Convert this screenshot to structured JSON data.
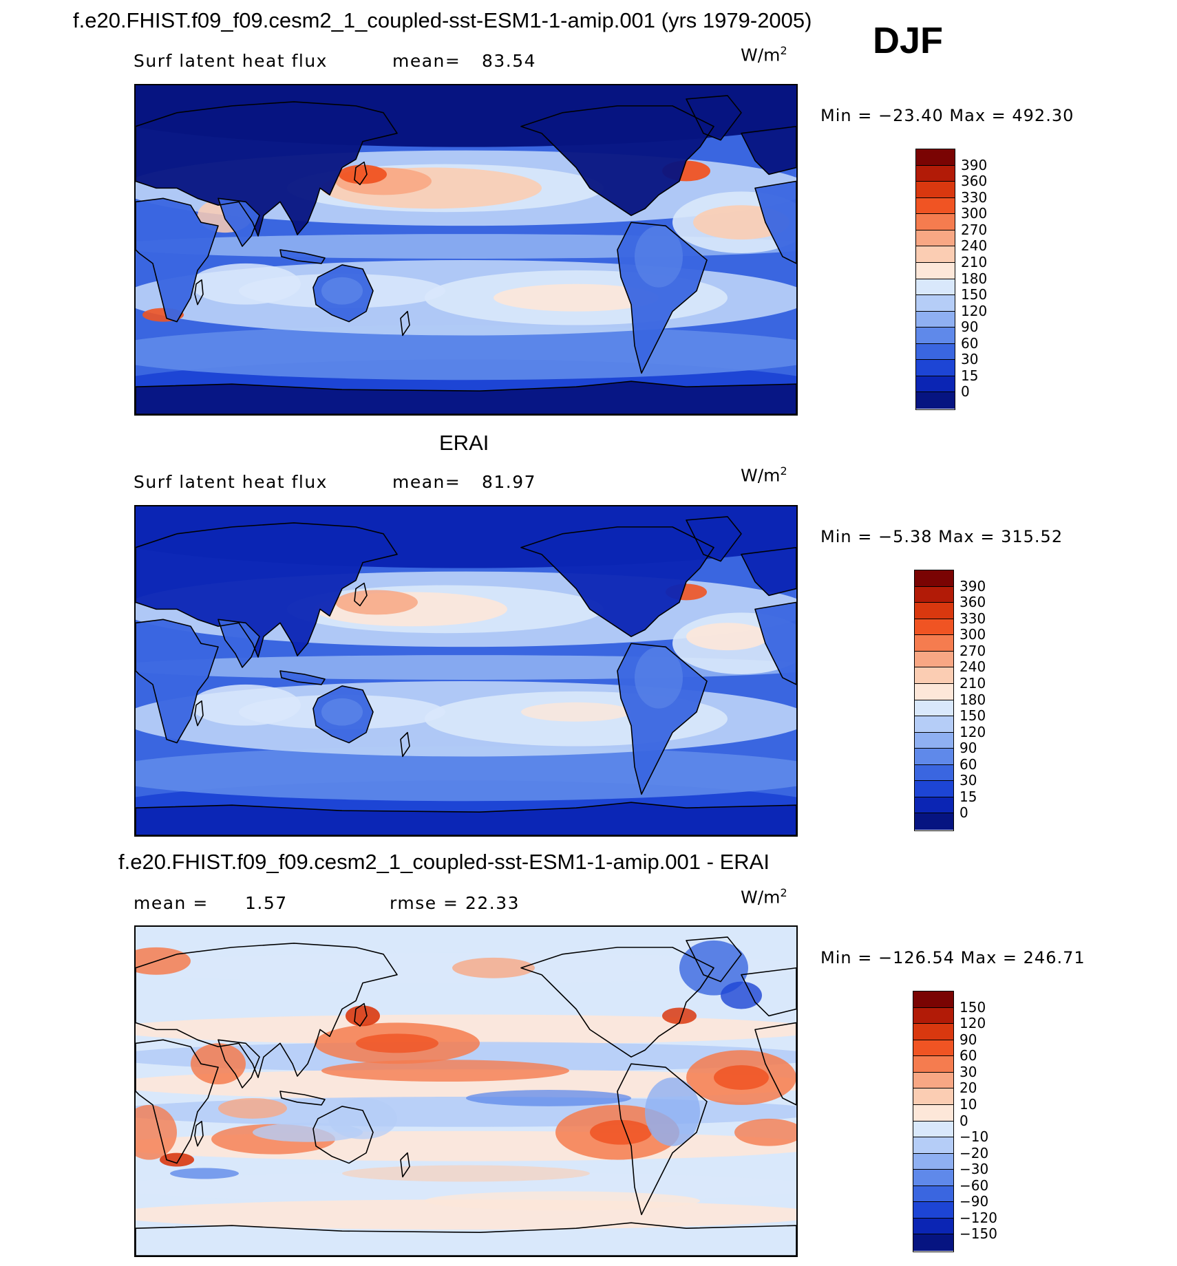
{
  "header": {
    "case_title": "f.e20.FHIST.f09_f09.cesm2_1_coupled-sst-ESM1-1-amip.001 (yrs 1979-2005)",
    "season": "DJF"
  },
  "panels": [
    {
      "title": "",
      "variable": "Surf latent heat flux",
      "stat_label": "mean=",
      "stat_value": "83.54",
      "units": "W/m",
      "units_sup": "2",
      "minmax": "Min = −23.40 Max = 492.30",
      "colorbar_ticks": [
        "390",
        "360",
        "330",
        "300",
        "270",
        "240",
        "210",
        "180",
        "150",
        "120",
        "90",
        "60",
        "30",
        "15",
        "0"
      ],
      "colors": [
        "#7a0403",
        "#b21b07",
        "#d9380f",
        "#f05423",
        "#f57c4f",
        "#f8a784",
        "#fbcdb3",
        "#fde7d9",
        "#d9e8fb",
        "#b5cdf7",
        "#8fb0f2",
        "#5f89ea",
        "#3a66e0",
        "#1d45d5",
        "#0b25b4",
        "#061481"
      ],
      "style": "model"
    },
    {
      "title": "ERAI",
      "variable": "Surf latent heat flux",
      "stat_label": "mean=",
      "stat_value": "81.97",
      "units": "W/m",
      "units_sup": "2",
      "minmax": "Min = −5.38 Max = 315.52",
      "colorbar_ticks": [
        "390",
        "360",
        "330",
        "300",
        "270",
        "240",
        "210",
        "180",
        "150",
        "120",
        "90",
        "60",
        "30",
        "15",
        "0"
      ],
      "colors": [
        "#7a0403",
        "#b21b07",
        "#d9380f",
        "#f05423",
        "#f57c4f",
        "#f8a784",
        "#fbcdb3",
        "#fde7d9",
        "#d9e8fb",
        "#b5cdf7",
        "#8fb0f2",
        "#5f89ea",
        "#3a66e0",
        "#1d45d5",
        "#0b25b4",
        "#061481"
      ],
      "style": "obs"
    },
    {
      "title": "f.e20.FHIST.f09_f09.cesm2_1_coupled-sst-ESM1-1-amip.001 - ERAI",
      "variable": "mean =",
      "stat_label": "1.57",
      "stat_value": "rmse = 22.33",
      "units": "W/m",
      "units_sup": "2",
      "minmax": "Min = −126.54 Max = 246.71",
      "colorbar_ticks": [
        "150",
        "120",
        "90",
        "60",
        "30",
        "20",
        "10",
        "0",
        "−10",
        "−20",
        "−30",
        "−60",
        "−90",
        "−120",
        "−150"
      ],
      "colors": [
        "#7a0403",
        "#b21b07",
        "#d9380f",
        "#f05423",
        "#f57c4f",
        "#f8a784",
        "#fbcdb3",
        "#fde7d9",
        "#d9e8fb",
        "#b5cdf7",
        "#8fb0f2",
        "#5f89ea",
        "#3a66e0",
        "#1d45d5",
        "#0b25b4",
        "#061481"
      ],
      "style": "diff"
    }
  ]
}
